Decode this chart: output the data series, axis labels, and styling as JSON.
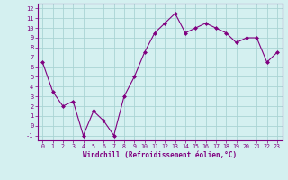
{
  "x": [
    0,
    1,
    2,
    3,
    4,
    5,
    6,
    7,
    8,
    9,
    10,
    11,
    12,
    13,
    14,
    15,
    16,
    17,
    18,
    19,
    20,
    21,
    22,
    23
  ],
  "y": [
    6.5,
    3.5,
    2.0,
    2.5,
    -1.0,
    1.5,
    0.5,
    -1.0,
    3.0,
    5.0,
    7.5,
    9.5,
    10.5,
    11.5,
    9.5,
    10.0,
    10.5,
    10.0,
    9.5,
    8.5,
    9.0,
    9.0,
    6.5,
    7.5
  ],
  "line_color": "#800080",
  "marker": "D",
  "marker_size": 2,
  "bg_color": "#c8eaea",
  "grid_color": "#aad4d4",
  "xlabel": "Windchill (Refroidissement éolien,°C)",
  "xlabel_color": "#800080",
  "tick_color": "#800080",
  "ylim": [
    -1.5,
    12.5
  ],
  "yticks": [
    -1,
    0,
    1,
    2,
    3,
    4,
    5,
    6,
    7,
    8,
    9,
    10,
    11,
    12
  ],
  "xticks": [
    0,
    1,
    2,
    3,
    4,
    5,
    6,
    7,
    8,
    9,
    10,
    11,
    12,
    13,
    14,
    15,
    16,
    17,
    18,
    19,
    20,
    21,
    22,
    23
  ],
  "spine_color": "#800080",
  "axis_bg": "#d4f0f0"
}
